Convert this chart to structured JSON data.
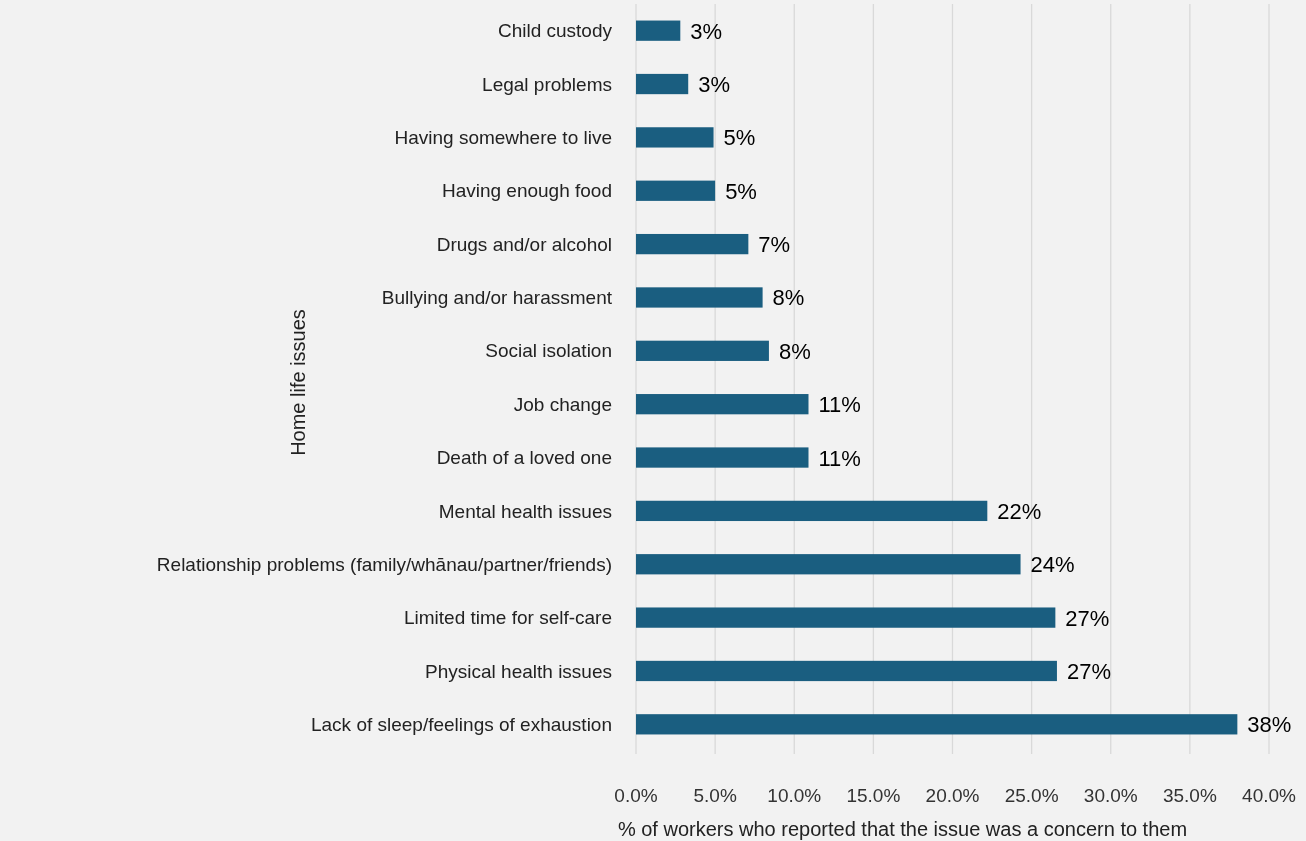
{
  "chart_data": {
    "type": "bar",
    "orientation": "horizontal",
    "xlabel": "% of workers who reported that the issue was a concern to them",
    "ylabel": "Home life issues",
    "categories": [
      "Child custody",
      "Legal problems",
      "Having somewhere to live",
      "Having enough food",
      "Drugs and/or alcohol",
      "Bullying and/or harassment",
      "Social isolation",
      "Job change",
      "Death of a loved one",
      "Mental health issues",
      "Relationship problems (family/whānau/partner/friends)",
      "Limited time for self-care",
      "Physical health issues",
      "Lack of sleep/feelings of exhaustion"
    ],
    "values": [
      2.8,
      3.3,
      4.9,
      5.0,
      7.1,
      8.0,
      8.4,
      10.9,
      10.9,
      22.2,
      24.3,
      26.5,
      26.6,
      38.0
    ],
    "value_labels": [
      "3%",
      "3%",
      "5%",
      "5%",
      "7%",
      "8%",
      "8%",
      "11%",
      "11%",
      "22%",
      "24%",
      "27%",
      "27%",
      "38%"
    ],
    "color": "#1a5e80",
    "xlim": [
      0,
      40
    ],
    "xticks": [
      {
        "value": 0,
        "label": "0.0%"
      },
      {
        "value": 5,
        "label": "5.0%"
      },
      {
        "value": 10,
        "label": "10.0%"
      },
      {
        "value": 15,
        "label": "15.0%"
      },
      {
        "value": 20,
        "label": "20.0%"
      },
      {
        "value": 25,
        "label": "25.0%"
      },
      {
        "value": 30,
        "label": "30.0%"
      },
      {
        "value": 35,
        "label": "35.0%"
      },
      {
        "value": 40,
        "label": "40.0%"
      }
    ],
    "grid": "x"
  }
}
